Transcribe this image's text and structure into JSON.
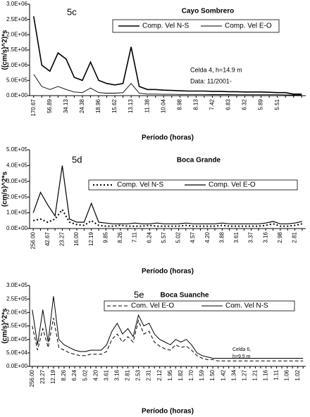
{
  "chart_data": [
    {
      "type": "line",
      "panel": "5c",
      "title": "Cayo Sombrero",
      "xlabel": "Período (horas)",
      "ylabel": "((cm/s)^2)*s",
      "annotations": [
        "Celda 4, h=14.9 m",
        "Data: 11/2001-"
      ],
      "categories": [
        "170.67",
        null,
        "56.89",
        null,
        "34.13",
        null,
        "24.38",
        null,
        "18.96",
        null,
        "15.62",
        null,
        "13.13",
        null,
        "11.38",
        null,
        "10.04",
        null,
        "8.98",
        null,
        "8.13",
        null,
        "7.42",
        null,
        "6.83",
        null,
        "6.32",
        null,
        "5.89",
        null,
        "5.51",
        null,
        null,
        null
      ],
      "series": [
        {
          "name": "Comp. Vel N-S",
          "color": "#000000",
          "style": "solid",
          "width": 1.6,
          "values": [
            2600000,
            1000000,
            800000,
            1400000,
            1200000,
            600000,
            500000,
            1100000,
            500000,
            400000,
            350000,
            400000,
            1600000,
            300000,
            200000,
            200000,
            180000,
            170000,
            160000,
            150000,
            150000,
            150000,
            140000,
            140000,
            130000,
            130000,
            120000,
            120000,
            120000,
            110000,
            100000,
            100000,
            50000,
            50000
          ]
        },
        {
          "name": "Comp. Vel E-O",
          "color": "#000000",
          "style": "solid",
          "width": 0.9,
          "values": [
            700000,
            300000,
            200000,
            300000,
            200000,
            120000,
            100000,
            250000,
            100000,
            80000,
            80000,
            100000,
            400000,
            80000,
            50000,
            50000,
            45000,
            45000,
            40000,
            40000,
            40000,
            40000,
            35000,
            35000,
            35000,
            30000,
            30000,
            30000,
            30000,
            30000,
            30000,
            25000,
            20000,
            20000
          ]
        }
      ],
      "ylim": [
        0,
        3000000
      ],
      "yticks": [
        {
          "value": 0,
          "label": "0.0E+00"
        },
        {
          "value": 500000,
          "label": "5.0E+05"
        },
        {
          "value": 1000000,
          "label": "1.0E+06"
        },
        {
          "value": 1500000,
          "label": "1.5E+06"
        },
        {
          "value": 2000000,
          "label": "2.0E+06"
        },
        {
          "value": 2500000,
          "label": "2.5E+06"
        },
        {
          "value": 3000000,
          "label": "3.0E+06"
        }
      ]
    },
    {
      "type": "line",
      "panel": "5d",
      "title": "Boca Grande",
      "xlabel": "Período (horas)",
      "ylabel": "(cm/s)^2*s",
      "annotations": [],
      "categories": [
        "256.00",
        null,
        "42.67",
        null,
        "23.27",
        null,
        "16.00",
        null,
        "12.19",
        null,
        "9.85",
        null,
        "8.26",
        null,
        "7.11",
        null,
        "6.24",
        null,
        "5.57",
        null,
        "5.02",
        null,
        "4.57",
        null,
        "4.20",
        null,
        "3.88",
        null,
        "3.61",
        null,
        "3.37",
        null,
        "3.16",
        null,
        "2.98",
        null,
        "2.81",
        null
      ],
      "series": [
        {
          "name": "Comp. Vel N-S",
          "color": "#000000",
          "style": "dotted",
          "width": 2,
          "values": [
            50000,
            60000,
            40000,
            60000,
            120000,
            40000,
            25000,
            20000,
            50000,
            20000,
            15000,
            15000,
            20000,
            15000,
            15000,
            15000,
            20000,
            15000,
            15000,
            15000,
            15000,
            20000,
            15000,
            15000,
            15000,
            15000,
            20000,
            15000,
            15000,
            15000,
            15000,
            15000,
            20000,
            30000,
            15000,
            15000,
            20000,
            30000
          ]
        },
        {
          "name": "Comp. Vel E-O",
          "color": "#000000",
          "style": "solid",
          "width": 1.2,
          "values": [
            100000,
            230000,
            150000,
            80000,
            400000,
            60000,
            40000,
            40000,
            160000,
            40000,
            35000,
            30000,
            30000,
            30000,
            35000,
            30000,
            30000,
            35000,
            30000,
            30000,
            30000,
            35000,
            30000,
            30000,
            30000,
            30000,
            35000,
            30000,
            30000,
            30000,
            30000,
            30000,
            35000,
            45000,
            30000,
            30000,
            35000,
            45000
          ]
        }
      ],
      "ylim": [
        0,
        500000
      ],
      "yticks": [
        {
          "value": 0,
          "label": "0.0E+00"
        },
        {
          "value": 100000,
          "label": "1.0E+05"
        },
        {
          "value": 200000,
          "label": "2.0E+05"
        },
        {
          "value": 300000,
          "label": "3.0E+05"
        },
        {
          "value": 400000,
          "label": "4.0E+05"
        },
        {
          "value": 500000,
          "label": "5.0E+05"
        }
      ]
    },
    {
      "type": "line",
      "panel": "5e",
      "title": "Boca Suanche",
      "xlabel": "Período (horas)",
      "ylabel": "(cm/s)^2*s",
      "annotations": [
        "Celda 6,",
        "h=9.5 m"
      ],
      "categories": [
        "256.00",
        null,
        "23.27",
        null,
        "12.19",
        null,
        "8.26",
        null,
        "6.24",
        null,
        "5.02",
        null,
        "4.20",
        null,
        "3.61",
        null,
        "3.16",
        null,
        "2.81",
        null,
        "2.53",
        null,
        "2.31",
        null,
        "2.12",
        null,
        "1.95",
        null,
        "1.82",
        null,
        "1.70",
        null,
        "1.59",
        null,
        "1.50",
        null,
        "1.42",
        null,
        "1.34",
        null,
        "1.27",
        null,
        "1.21",
        null,
        "1.16",
        null,
        "1.11",
        null,
        "1.06",
        null,
        "1.02",
        null
      ],
      "series": [
        {
          "name": "Com. Vel E-O",
          "color": "#000000",
          "style": "dashed",
          "width": 1,
          "values": [
            150000,
            60000,
            140000,
            70000,
            180000,
            70000,
            60000,
            50000,
            45000,
            40000,
            40000,
            45000,
            45000,
            45000,
            55000,
            100000,
            120000,
            90000,
            110000,
            90000,
            170000,
            120000,
            130000,
            90000,
            75000,
            65000,
            60000,
            80000,
            70000,
            75000,
            60000,
            40000,
            30000,
            25000,
            25000,
            20000,
            20000,
            20000,
            20000,
            20000,
            20000,
            20000,
            20000,
            20000,
            20000,
            20000,
            20000,
            20000,
            20000,
            20000,
            20000,
            20000
          ]
        },
        {
          "name": "Com. Vel N-S",
          "color": "#000000",
          "style": "solid",
          "width": 1,
          "values": [
            210000,
            80000,
            210000,
            90000,
            260000,
            100000,
            80000,
            70000,
            60000,
            55000,
            55000,
            60000,
            60000,
            60000,
            80000,
            130000,
            160000,
            120000,
            140000,
            110000,
            190000,
            150000,
            160000,
            120000,
            100000,
            90000,
            80000,
            100000,
            90000,
            100000,
            80000,
            50000,
            40000,
            35000,
            30000,
            30000,
            30000,
            30000,
            30000,
            30000,
            30000,
            30000,
            30000,
            30000,
            30000,
            30000,
            30000,
            30000,
            30000,
            30000,
            30000,
            30000
          ]
        }
      ],
      "ylim": [
        0,
        300000
      ],
      "yticks": [
        {
          "value": 0,
          "label": "0.0E+00"
        },
        {
          "value": 50000,
          "label": "5.0E+04"
        },
        {
          "value": 100000,
          "label": "1.0E+05"
        },
        {
          "value": 150000,
          "label": "1.5E+05"
        },
        {
          "value": 200000,
          "label": "2.0E+05"
        },
        {
          "value": 250000,
          "label": "2.5E+05"
        },
        {
          "value": 300000,
          "label": "3.0E+05"
        }
      ]
    }
  ]
}
